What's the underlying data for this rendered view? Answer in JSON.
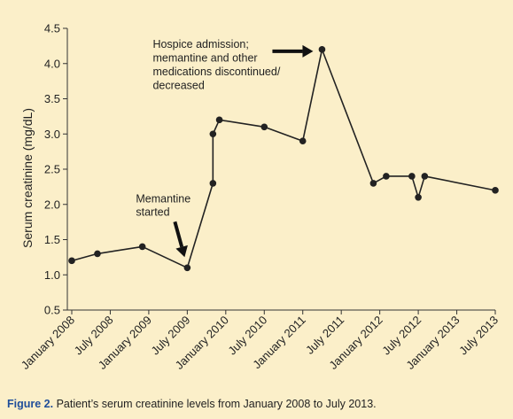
{
  "caption": {
    "label": "Figure 2.",
    "text": " Patient’s serum creatinine levels from January 2008 to July 2013."
  },
  "chart_data": {
    "type": "line",
    "ylabel": "Serum creatinine (mg/dL)",
    "xlabel": "",
    "ylim": [
      0.5,
      4.5
    ],
    "yticks": [
      "0.5",
      "1.0",
      "1.5",
      "2.0",
      "2.5",
      "3.0",
      "3.5",
      "4.0",
      "4.5"
    ],
    "xlim": [
      "2008-01",
      "2013-07"
    ],
    "xticks": [
      {
        "value": "2008-01",
        "label": "January 2008"
      },
      {
        "value": "2008-07",
        "label": "July 2008"
      },
      {
        "value": "2009-01",
        "label": "January 2009"
      },
      {
        "value": "2009-07",
        "label": "July 2009"
      },
      {
        "value": "2010-01",
        "label": "January 2010"
      },
      {
        "value": "2010-07",
        "label": "July 2010"
      },
      {
        "value": "2011-01",
        "label": "January 2011"
      },
      {
        "value": "2011-07",
        "label": "July 2011"
      },
      {
        "value": "2012-01",
        "label": "January 2012"
      },
      {
        "value": "2012-07",
        "label": "July 2012"
      },
      {
        "value": "2013-01",
        "label": "January 2013"
      },
      {
        "value": "2013-07",
        "label": "July 2013"
      }
    ],
    "series": [
      {
        "color": "#222222",
        "points": [
          {
            "x": "2008-01",
            "y": 1.2
          },
          {
            "x": "2008-05",
            "y": 1.3
          },
          {
            "x": "2008-12",
            "y": 1.4
          },
          {
            "x": "2009-07",
            "y": 1.1
          },
          {
            "x": "2009-11",
            "y": 2.3
          },
          {
            "x": "2009-11",
            "y": 3.0
          },
          {
            "x": "2009-12",
            "y": 3.2
          },
          {
            "x": "2010-07",
            "y": 3.1
          },
          {
            "x": "2011-01",
            "y": 2.9
          },
          {
            "x": "2011-04",
            "y": 4.2
          },
          {
            "x": "2011-12",
            "y": 2.3
          },
          {
            "x": "2012-02",
            "y": 2.4
          },
          {
            "x": "2012-06",
            "y": 2.4
          },
          {
            "x": "2012-07",
            "y": 2.1
          },
          {
            "x": "2012-08",
            "y": 2.4
          },
          {
            "x": "2013-07",
            "y": 2.2
          }
        ]
      }
    ],
    "annotations": [
      {
        "text": "Memantine\nstarted",
        "target": {
          "x": "2009-07",
          "y": 1.1
        }
      },
      {
        "text": "Hospice admission;\nmemantine and other\nmedications discontinued/\ndecreased",
        "target": {
          "x": "2011-04",
          "y": 4.2
        }
      }
    ],
    "grid": false,
    "legend": "none"
  }
}
